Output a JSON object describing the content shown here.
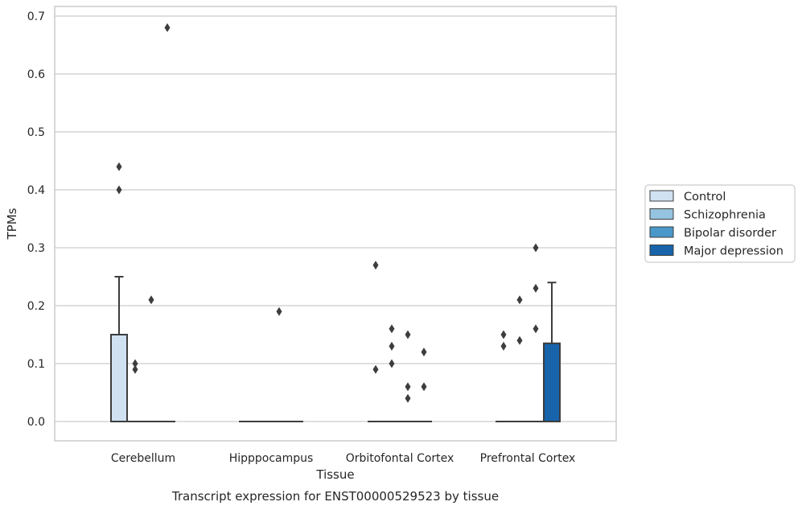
{
  "chart_data": {
    "type": "box",
    "title": "",
    "caption": "Transcript expression for ENST00000529523 by tissue",
    "xlabel": "Tissue",
    "ylabel": "TPMs",
    "ylim": [
      -0.034,
      0.715
    ],
    "yticks": [
      "0.0",
      "0.1",
      "0.2",
      "0.3",
      "0.4",
      "0.5",
      "0.6",
      "0.7"
    ],
    "grid": "horizontal",
    "legend_position": "right",
    "categories": [
      "Cerebellum",
      "Hipppocampus",
      "Orbitofontal Cortex",
      "Prefrontal Cortex"
    ],
    "series": [
      {
        "name": "Control",
        "color": "#d0e1f2",
        "boxes": [
          {
            "q1": 0,
            "median": 0,
            "q3": 0.15,
            "whisker_low": 0,
            "whisker_high": 0.25,
            "outliers": [
              0.44,
              0.4
            ]
          },
          {
            "q1": 0,
            "median": 0,
            "q3": 0,
            "whisker_low": 0,
            "whisker_high": 0,
            "outliers": []
          },
          {
            "q1": 0,
            "median": 0,
            "q3": 0,
            "whisker_low": 0,
            "whisker_high": 0,
            "outliers": [
              0.27,
              0.09
            ]
          },
          {
            "q1": 0,
            "median": 0,
            "q3": 0,
            "whisker_low": 0,
            "whisker_high": 0,
            "outliers": [
              0.15,
              0.13
            ]
          }
        ]
      },
      {
        "name": "Schizophrenia",
        "color": "#94c4df",
        "boxes": [
          {
            "q1": 0,
            "median": 0,
            "q3": 0,
            "whisker_low": 0,
            "whisker_high": 0,
            "outliers": [
              0.1,
              0.09
            ]
          },
          {
            "q1": 0,
            "median": 0,
            "q3": 0,
            "whisker_low": 0,
            "whisker_high": 0,
            "outliers": []
          },
          {
            "q1": 0,
            "median": 0,
            "q3": 0,
            "whisker_low": 0,
            "whisker_high": 0,
            "outliers": [
              0.16,
              0.13,
              0.1
            ]
          },
          {
            "q1": 0,
            "median": 0,
            "q3": 0,
            "whisker_low": 0,
            "whisker_high": 0,
            "outliers": [
              0.21,
              0.14
            ]
          }
        ]
      },
      {
        "name": "Bipolar disorder",
        "color": "#4a98c9",
        "boxes": [
          {
            "q1": 0,
            "median": 0,
            "q3": 0,
            "whisker_low": 0,
            "whisker_high": 0,
            "outliers": [
              0.21
            ]
          },
          {
            "q1": 0,
            "median": 0,
            "q3": 0,
            "whisker_low": 0,
            "whisker_high": 0,
            "outliers": [
              0.19
            ]
          },
          {
            "q1": 0,
            "median": 0,
            "q3": 0,
            "whisker_low": 0,
            "whisker_high": 0,
            "outliers": [
              0.15,
              0.06,
              0.04
            ]
          },
          {
            "q1": 0,
            "median": 0,
            "q3": 0,
            "whisker_low": 0,
            "whisker_high": 0,
            "outliers": [
              0.3,
              0.23,
              0.16
            ]
          }
        ]
      },
      {
        "name": "Major depression",
        "color": "#1764ab",
        "boxes": [
          {
            "q1": 0,
            "median": 0,
            "q3": 0,
            "whisker_low": 0,
            "whisker_high": 0,
            "outliers": [
              0.68
            ]
          },
          {
            "q1": 0,
            "median": 0,
            "q3": 0,
            "whisker_low": 0,
            "whisker_high": 0,
            "outliers": []
          },
          {
            "q1": 0,
            "median": 0,
            "q3": 0,
            "whisker_low": 0,
            "whisker_high": 0,
            "outliers": [
              0.12,
              0.06
            ]
          },
          {
            "q1": 0,
            "median": 0,
            "q3": 0.135,
            "whisker_low": 0,
            "whisker_high": 0.24,
            "outliers": []
          }
        ]
      }
    ],
    "colors": {
      "grid": "#cccccc",
      "axes": "#cccccc",
      "box_edge": "#3d3d3d",
      "outlier": "#3d3d3d",
      "text": "#262626"
    }
  }
}
